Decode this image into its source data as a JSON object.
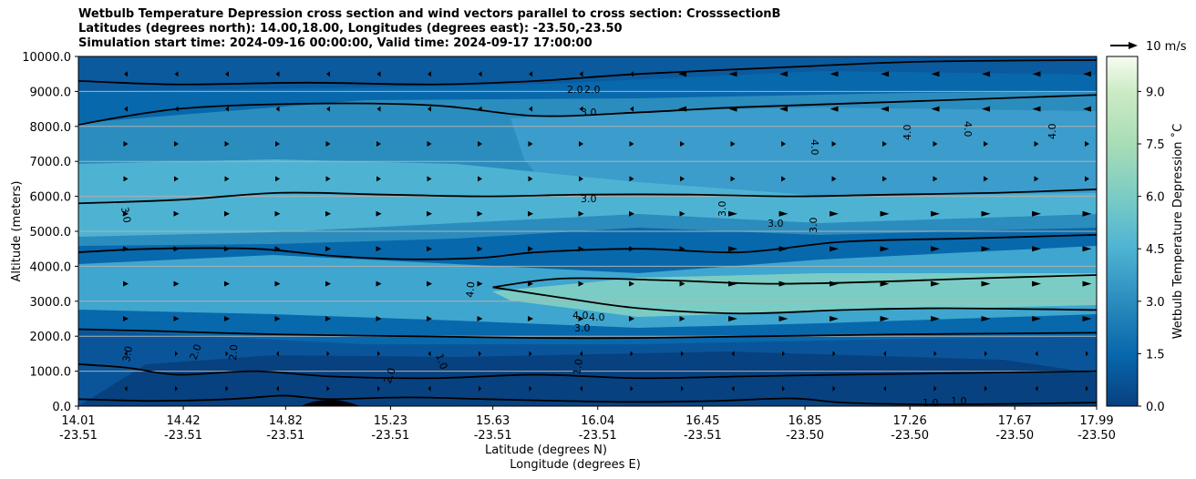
{
  "chart_data": {
    "type": "filled-contour-cross-section",
    "title_lines": [
      "Wetbulb Temperature Depression cross section and wind vectors parallel to cross section: CrosssectionB",
      "Latitudes (degrees north): 14.00,18.00, Longitudes (degrees east): -23.50,-23.50",
      "Simulation start time: 2024-09-16 00:00:00, Valid time: 2024-09-17 17:00:00"
    ],
    "ylabel": "Altitude (meters)",
    "xlabel_line1": "Latitude (degrees N)",
    "xlabel_line2": "Longitude (degrees E)",
    "ylim": [
      0,
      10000
    ],
    "y_ticks": [
      "0.0",
      "1000.0",
      "2000.0",
      "3000.0",
      "4000.0",
      "5000.0",
      "6000.0",
      "7000.0",
      "8000.0",
      "9000.0",
      "10000.0"
    ],
    "y_tick_values": [
      0,
      1000,
      2000,
      3000,
      4000,
      5000,
      6000,
      7000,
      8000,
      9000,
      10000
    ],
    "xlim": [
      14.01,
      17.99
    ],
    "x_ticks": [
      {
        "lat": "14.01",
        "lon": "-23.51",
        "value": 14.01
      },
      {
        "lat": "14.42",
        "lon": "-23.51",
        "value": 14.42
      },
      {
        "lat": "14.82",
        "lon": "-23.51",
        "value": 14.82
      },
      {
        "lat": "15.23",
        "lon": "-23.51",
        "value": 15.23
      },
      {
        "lat": "15.63",
        "lon": "-23.51",
        "value": 15.63
      },
      {
        "lat": "16.04",
        "lon": "-23.51",
        "value": 16.04
      },
      {
        "lat": "16.45",
        "lon": "-23.51",
        "value": 16.45
      },
      {
        "lat": "16.85",
        "lon": "-23.50",
        "value": 16.85
      },
      {
        "lat": "17.26",
        "lon": "-23.50",
        "value": 17.26
      },
      {
        "lat": "17.67",
        "lon": "-23.50",
        "value": 17.67
      },
      {
        "lat": "17.99",
        "lon": "-23.50",
        "value": 17.99
      }
    ],
    "colorbar": {
      "label": "Wetbulb Temperature Depression ˚C",
      "min": 0.0,
      "max": 10.0,
      "ticks": [
        "0.0",
        "1.5",
        "3.0",
        "4.5",
        "6.0",
        "7.5",
        "9.0"
      ],
      "tick_values": [
        0.0,
        1.5,
        3.0,
        4.5,
        6.0,
        7.5,
        9.0
      ],
      "levels": 20,
      "colormap": "GnBu_r"
    },
    "quiver_key": {
      "label": "10 m/s",
      "speed": 10
    },
    "contour_lines": [
      {
        "level": 1.0,
        "points": [
          [
            14.01,
            200
          ],
          [
            14.3,
            150
          ],
          [
            14.6,
            200
          ],
          [
            14.8,
            300
          ],
          [
            14.9,
            250
          ],
          [
            15.0,
            200
          ],
          [
            15.3,
            250
          ],
          [
            15.6,
            200
          ],
          [
            15.9,
            150
          ],
          [
            16.2,
            120
          ],
          [
            16.5,
            150
          ],
          [
            16.8,
            220
          ],
          [
            17.0,
            100
          ],
          [
            17.3,
            50
          ],
          [
            17.6,
            60
          ],
          [
            17.99,
            100
          ]
        ]
      },
      {
        "level": 2.0,
        "points": [
          [
            14.01,
            1200
          ],
          [
            14.2,
            1100
          ],
          [
            14.4,
            900
          ],
          [
            14.7,
            1000
          ],
          [
            15.0,
            850
          ],
          [
            15.4,
            800
          ],
          [
            15.8,
            900
          ],
          [
            16.2,
            800
          ],
          [
            16.6,
            850
          ],
          [
            17.0,
            900
          ],
          [
            17.5,
            950
          ],
          [
            17.99,
            1000
          ]
        ]
      },
      {
        "level": 2.0,
        "points": [
          [
            14.01,
            9300
          ],
          [
            14.4,
            9200
          ],
          [
            14.9,
            9250
          ],
          [
            15.4,
            9200
          ],
          [
            15.8,
            9300
          ],
          [
            16.2,
            9500
          ],
          [
            16.8,
            9700
          ],
          [
            17.3,
            9850
          ],
          [
            17.99,
            9900
          ]
        ]
      },
      {
        "level": 3.0,
        "points": [
          [
            14.01,
            2200
          ],
          [
            14.3,
            2150
          ],
          [
            14.8,
            2050
          ],
          [
            15.3,
            2000
          ],
          [
            15.8,
            1950
          ],
          [
            16.2,
            1950
          ],
          [
            16.7,
            2000
          ],
          [
            17.2,
            2050
          ],
          [
            17.99,
            2100
          ]
        ]
      },
      {
        "level": 3.0,
        "points": [
          [
            14.01,
            8050
          ],
          [
            14.4,
            8500
          ],
          [
            14.9,
            8650
          ],
          [
            15.4,
            8600
          ],
          [
            15.8,
            8300
          ],
          [
            16.2,
            8400
          ],
          [
            16.6,
            8550
          ],
          [
            17.2,
            8700
          ],
          [
            17.99,
            8900
          ]
        ]
      },
      {
        "level": 3.0,
        "points": [
          [
            14.01,
            4400
          ],
          [
            14.3,
            4500
          ],
          [
            14.7,
            4500
          ],
          [
            15.0,
            4300
          ],
          [
            15.3,
            4200
          ],
          [
            15.6,
            4250
          ],
          [
            15.8,
            4400
          ],
          [
            16.2,
            4500
          ],
          [
            16.6,
            4400
          ],
          [
            17.0,
            4700
          ],
          [
            17.5,
            4800
          ],
          [
            17.99,
            4900
          ]
        ]
      },
      {
        "level": 3.0,
        "points": [
          [
            14.01,
            5800
          ],
          [
            14.4,
            5900
          ],
          [
            14.8,
            6100
          ],
          [
            15.2,
            6050
          ],
          [
            15.6,
            6000
          ],
          [
            16.0,
            6050
          ],
          [
            16.4,
            6050
          ],
          [
            16.8,
            6000
          ],
          [
            17.2,
            6050
          ],
          [
            17.6,
            6100
          ],
          [
            17.99,
            6200
          ]
        ]
      },
      {
        "level": 4.0,
        "points": [
          [
            15.63,
            3400
          ],
          [
            15.9,
            3100
          ],
          [
            16.2,
            2800
          ],
          [
            16.6,
            2650
          ],
          [
            17.0,
            2750
          ],
          [
            17.4,
            2800
          ],
          [
            17.99,
            2750
          ]
        ]
      },
      {
        "level": 4.0,
        "points": [
          [
            15.63,
            3400
          ],
          [
            15.9,
            3650
          ],
          [
            16.3,
            3600
          ],
          [
            16.7,
            3500
          ],
          [
            17.1,
            3550
          ],
          [
            17.5,
            3650
          ],
          [
            17.99,
            3750
          ]
        ]
      }
    ],
    "contour_labels": [
      "1.0",
      "2.0",
      "3.0",
      "4.0"
    ]
  }
}
